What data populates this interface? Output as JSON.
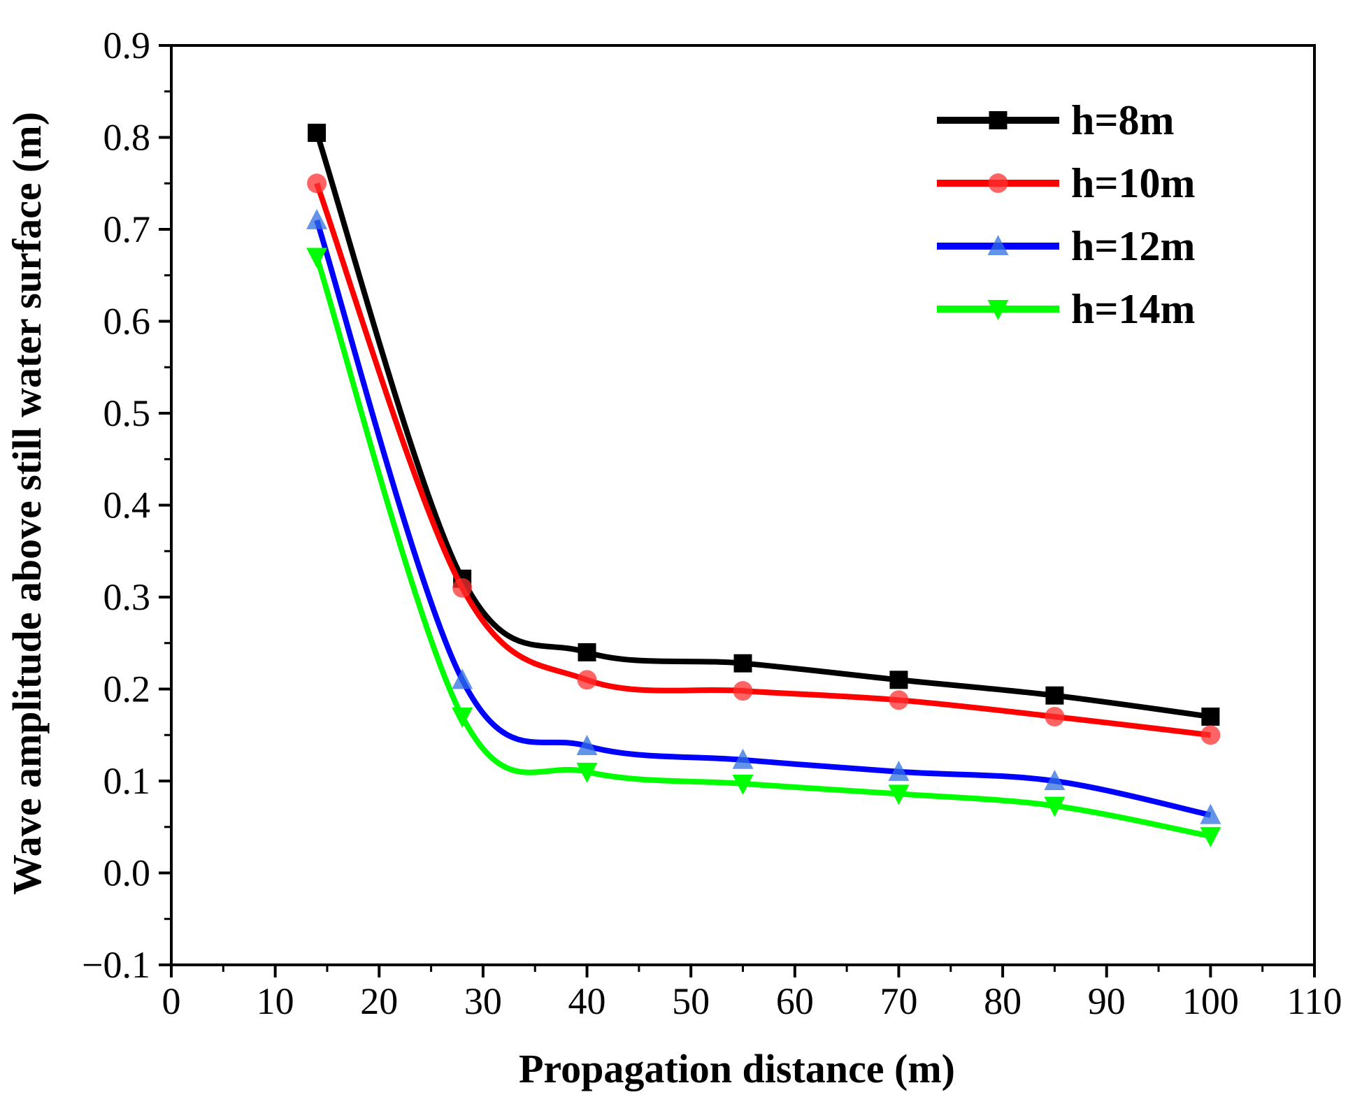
{
  "chart_data": {
    "type": "line",
    "title": "",
    "xlabel": "Propagation distance (m)",
    "ylabel": "Wave amplitude above still water surface (m)",
    "xlim": [
      0,
      110
    ],
    "ylim": [
      -0.1,
      0.9
    ],
    "x_ticks": [
      0,
      10,
      20,
      30,
      40,
      50,
      60,
      70,
      80,
      90,
      100,
      110
    ],
    "y_ticks": [
      -0.1,
      0.0,
      0.1,
      0.2,
      0.3,
      0.4,
      0.5,
      0.6,
      0.7,
      0.8,
      0.9
    ],
    "x_tick_labels": [
      "0",
      "10",
      "20",
      "30",
      "40",
      "50",
      "60",
      "70",
      "80",
      "90",
      "100",
      "110"
    ],
    "y_tick_labels": [
      "−0.1",
      "0.0",
      "0.1",
      "0.2",
      "0.3",
      "0.4",
      "0.5",
      "0.6",
      "0.7",
      "0.8",
      "0.9"
    ],
    "grid": false,
    "legend_position": "top-right",
    "x": [
      14,
      28,
      40,
      55,
      70,
      85,
      100
    ],
    "series": [
      {
        "name": "h=8m",
        "color": "#000000",
        "marker": "square",
        "values": [
          0.805,
          0.32,
          0.24,
          0.228,
          0.21,
          0.193,
          0.17
        ]
      },
      {
        "name": "h=10m",
        "color": "#ff0000",
        "marker": "circle",
        "values": [
          0.75,
          0.31,
          0.21,
          0.198,
          0.188,
          0.17,
          0.15
        ]
      },
      {
        "name": "h=12m",
        "color": "#0000ff",
        "marker": "triangle-up",
        "values": [
          0.71,
          0.21,
          0.138,
          0.123,
          0.11,
          0.1,
          0.063
        ]
      },
      {
        "name": "h=14m",
        "color": "#00ff00",
        "marker": "triangle-down",
        "values": [
          0.67,
          0.17,
          0.11,
          0.097,
          0.086,
          0.073,
          0.04
        ]
      }
    ]
  }
}
